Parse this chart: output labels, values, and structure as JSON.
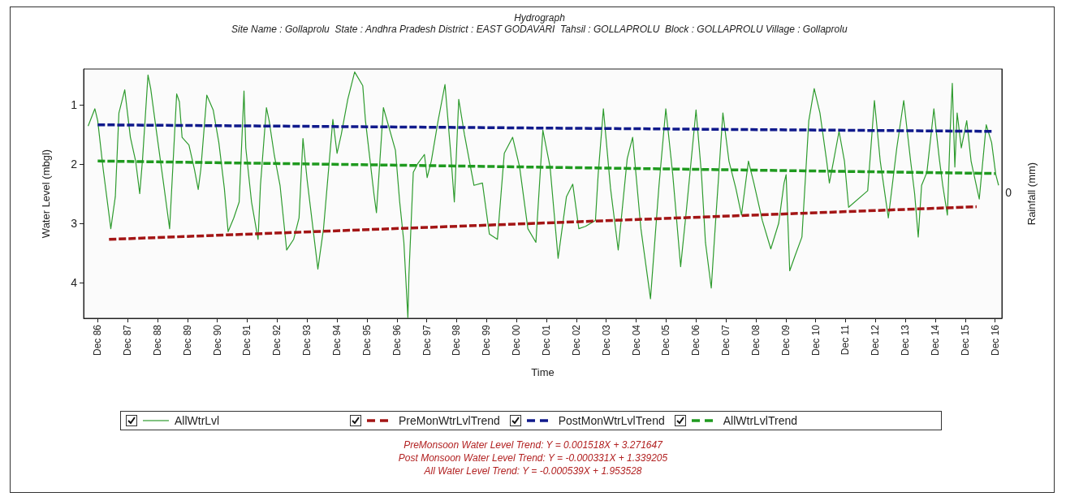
{
  "chart_data": {
    "type": "line",
    "title": "Hydrograph",
    "subtitle": "Site Name : Gollaprolu  State : Andhra Pradesh District : EAST GODAVARI  Tahsil : GOLLAPROLU  Block : GOLLAPROLU Village : Gollaprolu",
    "xlabel": "Time",
    "ylabel": "Water Level (mbgl)",
    "y2label": "Rainfall (mm)",
    "xlim": [
      "1986-06-13",
      "2017-02-21"
    ],
    "xticks": [
      {
        "value": "1986-12",
        "label": "Dec 86"
      },
      {
        "value": "1987-12",
        "label": "Dec 87"
      },
      {
        "value": "1988-12",
        "label": "Dec 88"
      },
      {
        "value": "1989-12",
        "label": "Dec 89"
      },
      {
        "value": "1990-12",
        "label": "Dec 90"
      },
      {
        "value": "1991-12",
        "label": "Dec 91"
      },
      {
        "value": "1992-12",
        "label": "Dec 92"
      },
      {
        "value": "1993-12",
        "label": "Dec 93"
      },
      {
        "value": "1994-12",
        "label": "Dec 94"
      },
      {
        "value": "1995-12",
        "label": "Dec 95"
      },
      {
        "value": "1996-12",
        "label": "Dec 96"
      },
      {
        "value": "1997-12",
        "label": "Dec 97"
      },
      {
        "value": "1998-12",
        "label": "Dec 98"
      },
      {
        "value": "1999-12",
        "label": "Dec 99"
      },
      {
        "value": "2000-12",
        "label": "Dec 00"
      },
      {
        "value": "2001-12",
        "label": "Dec 01"
      },
      {
        "value": "2002-12",
        "label": "Dec 02"
      },
      {
        "value": "2003-12",
        "label": "Dec 03"
      },
      {
        "value": "2004-12",
        "label": "Dec 04"
      },
      {
        "value": "2005-12",
        "label": "Dec 05"
      },
      {
        "value": "2006-12",
        "label": "Dec 06"
      },
      {
        "value": "2007-12",
        "label": "Dec 07"
      },
      {
        "value": "2008-12",
        "label": "Dec 08"
      },
      {
        "value": "2009-12",
        "label": "Dec 09"
      },
      {
        "value": "2010-12",
        "label": "Dec 10"
      },
      {
        "value": "2011-12",
        "label": "Dec 11"
      },
      {
        "value": "2012-12",
        "label": "Dec 12"
      },
      {
        "value": "2013-12",
        "label": "Dec 13"
      },
      {
        "value": "2014-12",
        "label": "Dec 14"
      },
      {
        "value": "2015-12",
        "label": "Dec 15"
      },
      {
        "value": "2016-12",
        "label": "Dec 16"
      }
    ],
    "ylim": [
      4.6,
      0.4
    ],
    "yticks": [
      1,
      2,
      3,
      4
    ],
    "grid": false,
    "legend": "bottom",
    "marker": "none",
    "series": [
      {
        "name": "AllWtrLvl",
        "color": "#2e9b2e",
        "line_style": "solid",
        "x": [
          "1986-08-07",
          "1986-10-28",
          "1986-12-02",
          "1987-02-07",
          "1987-05-11",
          "1987-07-05",
          "1987-08-18",
          "1987-10-28",
          "1988-01-05",
          "1988-03-09",
          "1988-04-28",
          "1988-06-02",
          "1988-08-07",
          "1988-09-09",
          "1988-11-14",
          "1989-02-07",
          "1989-04-28",
          "1989-07-23",
          "1989-08-25",
          "1989-09-27",
          "1989-12-20",
          "1990-02-25",
          "1990-04-12",
          "1990-05-14",
          "1990-07-26",
          "1990-10-12",
          "1990-12-20",
          "1991-02-25",
          "1991-04-12",
          "1991-06-20",
          "1991-08-25",
          "1991-10-23",
          "1991-11-14",
          "1992-01-23",
          "1992-04-12",
          "1992-05-11",
          "1992-07-23",
          "1992-08-25",
          "1992-10-28",
          "1993-01-05",
          "1993-03-27",
          "1993-06-20",
          "1993-08-25",
          "1993-10-12",
          "1993-12-02",
          "1994-04-12",
          "1994-06-20",
          "1994-10-12",
          "1994-12-02",
          "1995-01-23",
          "1995-04-12",
          "1995-07-05",
          "1995-10-12",
          "1995-11-14",
          "1996-02-25",
          "1996-03-27",
          "1996-06-20",
          "1996-11-14",
          "1997-01-05",
          "1997-02-25",
          "1997-04-15",
          "1997-04-28",
          "1997-06-20",
          "1997-08-11",
          "1997-11-03",
          "1997-12-06",
          "1998-01-26",
          "1998-04-19",
          "1998-07-12",
          "1998-09-20",
          "1998-11-03",
          "1998-12-27",
          "1999-03-06",
          "1999-07-01",
          "1999-10-12",
          "2000-01-05",
          "2000-04-12",
          "2000-07-05",
          "2000-10-15",
          "2001-01-08",
          "2001-04-19",
          "2001-07-26",
          "2001-10-19",
          "2002-01-15",
          "2002-04-23",
          "2002-08-03",
          "2002-10-19",
          "2003-01-01",
          "2003-03-24",
          "2003-07-23",
          "2003-08-25",
          "2003-10-28",
          "2004-01-23",
          "2004-04-26",
          "2004-08-14",
          "2004-10-19",
          "2005-01-28",
          "2005-05-25",
          "2005-09-06",
          "2005-11-28",
          "2006-02-21",
          "2006-05-28",
          "2006-08-07",
          "2006-12-02",
          "2007-02-07",
          "2007-03-27",
          "2007-06-06",
          "2007-07-23",
          "2007-10-26",
          "2008-01-08",
          "2008-04-01",
          "2008-06-09",
          "2008-09-02",
          "2008-11-07",
          "2009-02-18",
          "2009-06-02",
          "2009-09-06",
          "2009-11-11",
          "2009-12-06",
          "2010-01-19",
          "2010-03-24",
          "2010-06-17",
          "2010-09-09",
          "2010-11-14",
          "2011-01-23",
          "2011-04-15",
          "2011-05-18",
          "2011-07-08",
          "2011-09-13",
          "2011-11-18",
          "2012-01-08",
          "2012-08-28",
          "2012-11-18",
          "2013-01-28",
          "2013-05-07",
          "2013-08-18",
          "2013-11-11",
          "2014-02-03",
          "2014-03-24",
          "2014-05-07",
          "2014-06-17",
          "2014-08-21",
          "2014-11-14",
          "2014-12-17",
          "2015-01-19",
          "2015-03-02",
          "2015-04-28",
          "2015-06-02",
          "2015-06-27",
          "2015-07-28",
          "2015-08-25",
          "2015-10-15",
          "2015-12-20",
          "2016-02-11",
          "2016-05-21",
          "2016-08-14",
          "2016-10-19",
          "2016-12-09",
          "2017-01-12"
        ],
        "values": [
          1.36,
          1.07,
          1.27,
          2.09,
          3.09,
          2.55,
          1.14,
          0.75,
          1.55,
          1.95,
          2.5,
          1.91,
          0.5,
          0.73,
          1.41,
          2.27,
          3.09,
          0.82,
          0.95,
          1.55,
          1.68,
          2.09,
          2.43,
          2.09,
          0.84,
          1.09,
          1.64,
          2.41,
          3.14,
          2.91,
          2.64,
          0.77,
          1.73,
          2.64,
          3.27,
          2.36,
          1.05,
          1.27,
          1.86,
          2.36,
          3.45,
          3.27,
          2.91,
          1.57,
          2.27,
          3.77,
          3.09,
          1.25,
          1.82,
          1.5,
          0.91,
          0.45,
          0.68,
          1.27,
          2.5,
          2.82,
          1.05,
          1.77,
          2.64,
          3.32,
          4.59,
          3.86,
          2.14,
          2.0,
          1.84,
          2.23,
          1.95,
          1.27,
          0.66,
          1.82,
          2.64,
          0.91,
          1.5,
          2.36,
          2.32,
          3.18,
          3.27,
          1.82,
          1.55,
          2.05,
          3.09,
          3.32,
          1.43,
          2.05,
          3.59,
          2.55,
          2.34,
          3.09,
          3.05,
          2.95,
          2.18,
          1.07,
          2.41,
          3.45,
          1.91,
          1.55,
          3.09,
          4.27,
          2.36,
          1.07,
          2.18,
          3.73,
          2.77,
          1.09,
          2.18,
          3.32,
          4.09,
          3.09,
          1.14,
          1.95,
          2.41,
          2.86,
          1.95,
          2.32,
          2.95,
          3.43,
          3.0,
          2.32,
          2.18,
          3.8,
          3.55,
          3.23,
          1.27,
          0.73,
          1.14,
          1.95,
          2.32,
          1.95,
          1.45,
          1.95,
          2.73,
          2.45,
          0.93,
          1.95,
          2.91,
          1.73,
          0.93,
          1.95,
          2.5,
          3.23,
          2.36,
          2.14,
          1.07,
          1.5,
          1.91,
          2.36,
          2.86,
          1.41,
          0.64,
          2.05,
          1.14,
          1.73,
          1.27,
          1.95,
          2.59,
          1.34,
          1.64,
          2.18,
          2.36
        ]
      },
      {
        "name": "PreMonWtrLvlTrend",
        "color": "#a31515",
        "line_style": "dashed",
        "x": [
          "1987-04-19",
          "2016-04-19"
        ],
        "values": [
          3.27,
          2.72
        ]
      },
      {
        "name": "PostMonWtrLvlTrend",
        "color": "#101a8c",
        "line_style": "dashed",
        "x": [
          "1986-12-02",
          "2016-10-26"
        ],
        "values": [
          1.34,
          1.45
        ]
      },
      {
        "name": "AllWtrLvlTrend",
        "color": "#1f9a1f",
        "line_style": "dashed",
        "x": [
          "1986-12-02",
          "2016-12-02"
        ],
        "values": [
          1.95,
          2.16
        ]
      }
    ],
    "annotations": [
      "0",
      "PreMonsoon Water Level Trend: Y = 0.001518X + 3.271647",
      "Post Monsoon Water Level Trend: Y = -0.000331X + 1.339205",
      "All Water Level Trend: Y = -0.000539X + 1.953528"
    ]
  }
}
